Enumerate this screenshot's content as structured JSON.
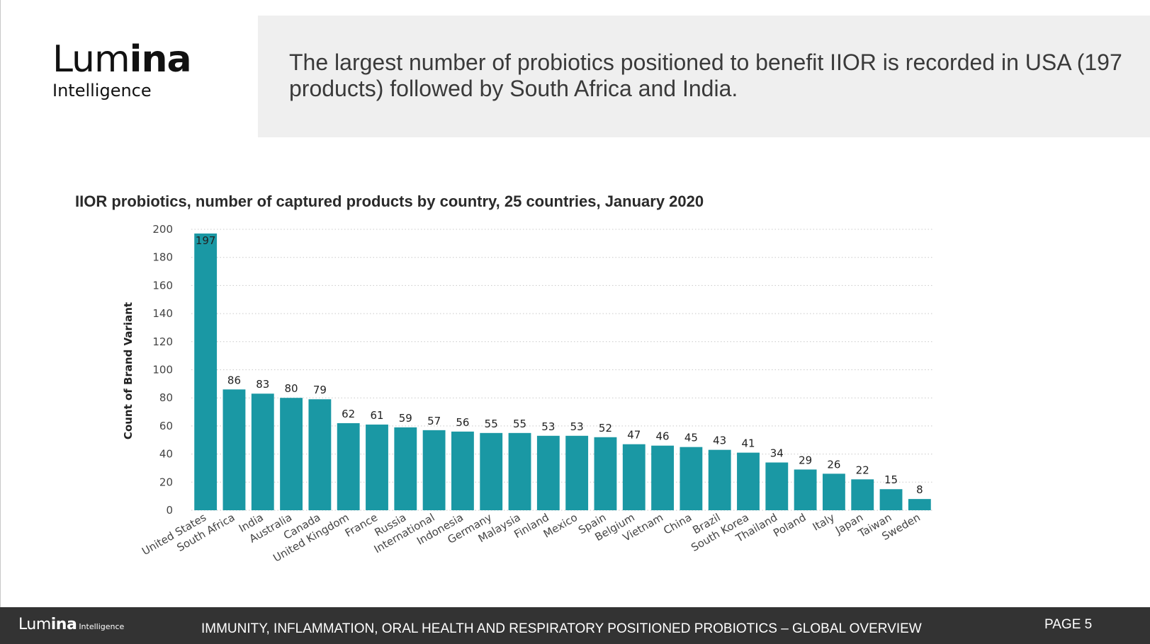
{
  "logo": {
    "word_thin": "Lum",
    "word_bold": "ina",
    "sub": "Intelligence"
  },
  "headline": "The largest number of probiotics positioned to benefit IIOR is recorded in USA (197 products) followed by South Africa and India.",
  "footer": {
    "logo_word_thin": "Lum",
    "logo_word_bold": "ina",
    "logo_sub": "Intelligence",
    "title": "IMMUNITY, INFLAMMATION, ORAL HEALTH AND RESPIRATORY POSITIONED PROBIOTICS – GLOBAL OVERVIEW",
    "page": "PAGE 5"
  },
  "chart_data": {
    "type": "bar",
    "title": "IIOR probiotics, number of captured products by country, 25 countries, January 2020",
    "xlabel": "",
    "ylabel": "Count of Brand Variant",
    "ylim": [
      0,
      200
    ],
    "yticks": [
      0,
      20,
      40,
      60,
      80,
      100,
      120,
      140,
      160,
      180,
      200
    ],
    "grid": true,
    "bar_color": "#1a98a4",
    "categories": [
      "United States",
      "South Africa",
      "India",
      "Australia",
      "Canada",
      "United Kingdom",
      "France",
      "Russia",
      "International",
      "Indonesia",
      "Germany",
      "Malaysia",
      "Finland",
      "Mexico",
      "Spain",
      "Belgium",
      "Vietnam",
      "China",
      "Brazil",
      "South Korea",
      "Thailand",
      "Poland",
      "Italy",
      "Japan",
      "Taiwan",
      "Sweden"
    ],
    "values": [
      197,
      86,
      83,
      80,
      79,
      62,
      61,
      59,
      57,
      56,
      55,
      55,
      53,
      53,
      52,
      47,
      46,
      45,
      43,
      41,
      34,
      29,
      26,
      22,
      15,
      8
    ]
  }
}
